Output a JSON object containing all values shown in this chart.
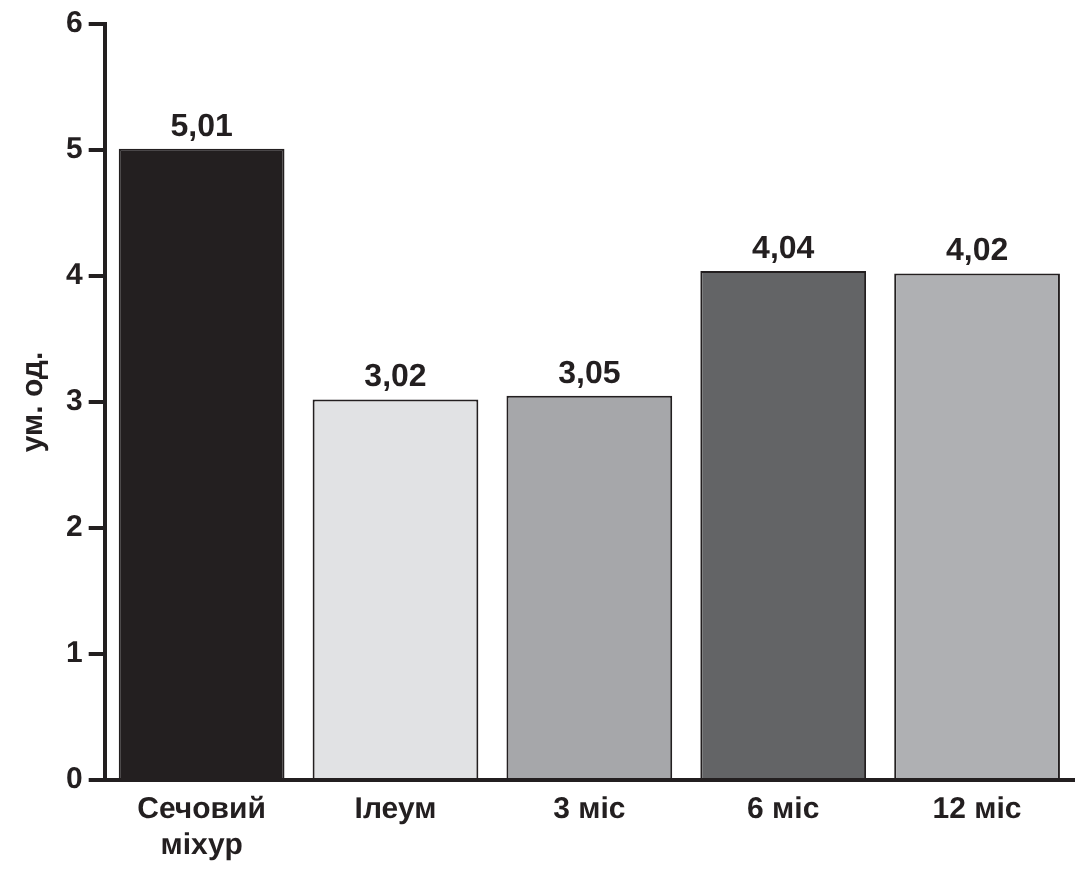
{
  "chart_data": {
    "type": "bar",
    "ylabel": "ум. од.",
    "categories": [
      "Сечовий міхур",
      "Ілеум",
      "3 міс",
      "6 міс",
      "12 міс"
    ],
    "values": [
      5.01,
      3.02,
      3.05,
      4.04,
      4.02
    ],
    "colors": [
      "#231f20",
      "#e1e2e4",
      "#a6a7aa",
      "#636466",
      "#afb0b3"
    ],
    "value_labels": [
      "5,01",
      "3,02",
      "3,05",
      "4,04",
      "4,02"
    ],
    "ylim": [
      0,
      6
    ],
    "yticks": [
      0,
      1,
      2,
      3,
      4,
      5,
      6
    ],
    "grid": false,
    "legend": false
  }
}
